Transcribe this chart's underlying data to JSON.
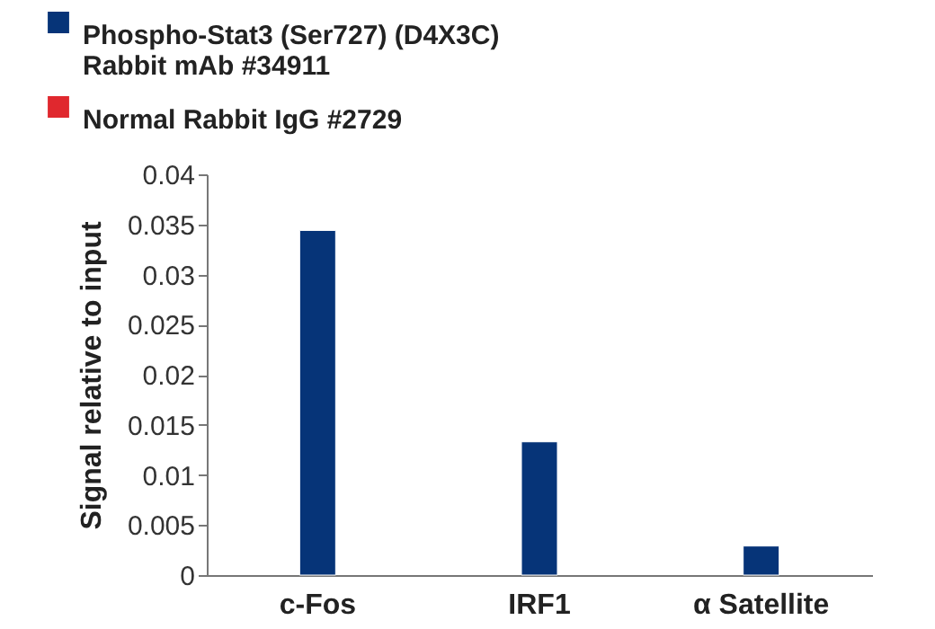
{
  "chart_data": {
    "type": "bar",
    "ylabel": "Signal relative to input",
    "categories": [
      "c-Fos",
      "IRF1",
      "α Satellite"
    ],
    "series": [
      {
        "name": "Phospho-Stat3 (Ser727) (D4X3C) Rabbit mAb #34911",
        "color": "#063478",
        "values": [
          0.0344,
          0.0133,
          0.0029
        ]
      },
      {
        "name": "Normal Rabbit IgG #2729",
        "color": "#e0282e",
        "values": [
          null,
          null,
          null
        ]
      }
    ],
    "ylim": [
      0,
      0.04
    ],
    "yticks": [
      0,
      0.005,
      0.01,
      0.015,
      0.02,
      0.025,
      0.03,
      0.035,
      0.04
    ],
    "grid": false,
    "legend": "top left"
  }
}
